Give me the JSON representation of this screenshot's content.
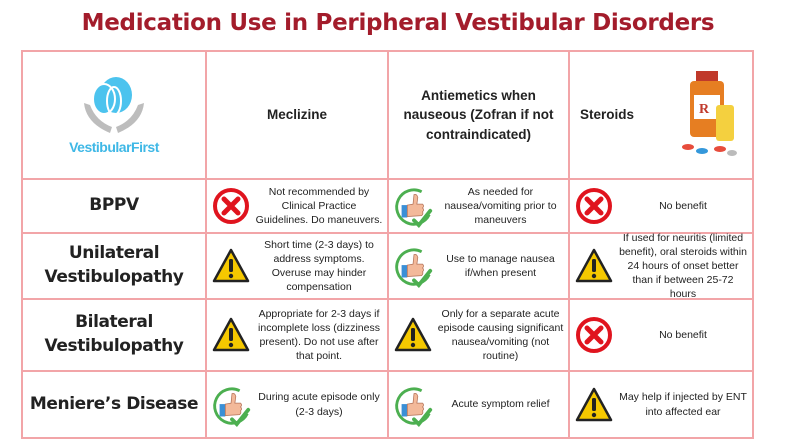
{
  "title": "Medication Use in Peripheral Vestibular Disorders",
  "logo_text": "VestibularFirst",
  "columns": [
    "Meclizine",
    "Antiemetics when nauseous (Zofran if not contraindicated)",
    "Steroids"
  ],
  "colors": {
    "title": "#a31c2b",
    "grid": "#f2a5a8",
    "no": "#e0141e",
    "caution": "#f5c800",
    "yes": "#4caf50"
  },
  "rows": [
    {
      "label": "BPPV",
      "cells": [
        {
          "icon": "x-circle-icon",
          "text": "Not recommended by Clinical Practice Guidelines. Do maneuvers."
        },
        {
          "icon": "thumbs-up-check-icon",
          "text": "As needed for nausea/vomiting prior to maneuvers"
        },
        {
          "icon": "x-circle-icon",
          "text": "No benefit"
        }
      ]
    },
    {
      "label": "Unilateral Vestibulopathy",
      "cells": [
        {
          "icon": "warning-icon",
          "text": "Short time (2-3 days) to address symptoms. Overuse may hinder compensation"
        },
        {
          "icon": "thumbs-up-check-icon",
          "text": "Use to manage nausea if/when present"
        },
        {
          "icon": "warning-icon",
          "text": "If used for neuritis (limited benefit), oral steroids within 24 hours of onset better than if between 25-72 hours"
        }
      ]
    },
    {
      "label": "Bilateral Vestibulopathy",
      "cells": [
        {
          "icon": "warning-icon",
          "text": "Appropriate for 2-3 days if incomplete loss (dizziness present). Do not use after that point."
        },
        {
          "icon": "warning-icon",
          "text": "Only for a separate acute episode causing significant nausea/vomiting (not routine)"
        },
        {
          "icon": "x-circle-icon",
          "text": "No benefit"
        }
      ]
    },
    {
      "label": "Meniere’s Disease",
      "cells": [
        {
          "icon": "thumbs-up-check-icon",
          "text": "During acute episode only (2-3 days)"
        },
        {
          "icon": "thumbs-up-check-icon",
          "text": "Acute symptom relief"
        },
        {
          "icon": "warning-icon",
          "text": "May help if injected by ENT into affected ear"
        }
      ]
    }
  ]
}
